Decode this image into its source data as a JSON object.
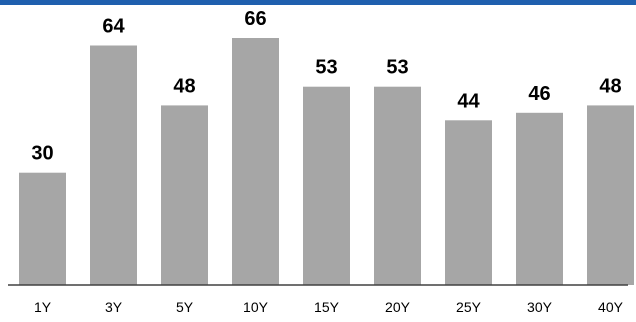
{
  "chart_data": {
    "type": "bar",
    "categories": [
      "1Y",
      "3Y",
      "5Y",
      "10Y",
      "15Y",
      "20Y",
      "25Y",
      "30Y",
      "40Y"
    ],
    "values": [
      30,
      64,
      48,
      66,
      53,
      53,
      44,
      46,
      48
    ],
    "title": "",
    "xlabel": "",
    "ylabel": "",
    "ylim": [
      0,
      70
    ],
    "grid": false,
    "legend": "none",
    "data_labels": true,
    "colors": {
      "bar": "#a6a6a6",
      "top_rule": "#1f5fae",
      "axis": "#404040",
      "text": "#000000"
    }
  }
}
